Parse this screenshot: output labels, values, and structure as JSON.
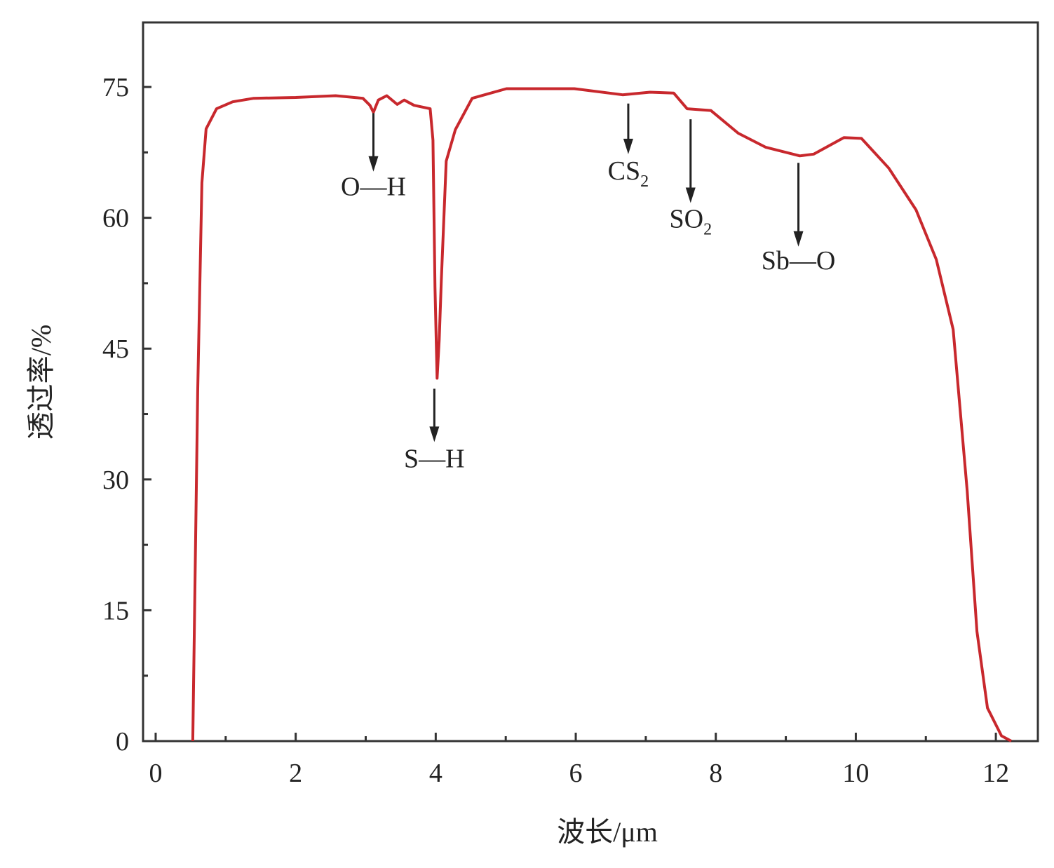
{
  "chart_data": {
    "type": "line",
    "title": "",
    "xlabel": "波长/μm",
    "ylabel": "透过率/%",
    "xlim": [
      -0.18,
      12.6
    ],
    "ylim": [
      0,
      82.4
    ],
    "xticks": [
      0,
      2,
      4,
      6,
      8,
      10,
      12
    ],
    "xminor": [
      1,
      3,
      5,
      7,
      9,
      11
    ],
    "yticks": [
      0,
      15,
      30,
      45,
      60,
      75
    ],
    "yminor": [
      7.5,
      22.5,
      37.5,
      52.5,
      67.5
    ],
    "grid": false,
    "series": [
      {
        "name": "transmittance",
        "color": "#c8282d",
        "x": [
          0.53,
          0.6,
          0.66,
          0.72,
          0.87,
          1.1,
          1.4,
          2.0,
          2.57,
          2.96,
          3.06,
          3.11,
          3.18,
          3.3,
          3.45,
          3.55,
          3.69,
          3.92,
          3.96,
          3.99,
          4.02,
          4.05,
          4.08,
          4.15,
          4.28,
          4.52,
          5.01,
          5.98,
          6.67,
          7.06,
          7.4,
          7.59,
          7.93,
          8.32,
          8.71,
          9.2,
          9.4,
          9.83,
          10.08,
          10.47,
          10.86,
          11.15,
          11.39,
          11.59,
          11.73,
          11.88,
          12.08,
          12.22
        ],
        "y": [
          0,
          40,
          64,
          70.2,
          72.5,
          73.3,
          73.7,
          73.8,
          74,
          73.7,
          72.9,
          72.1,
          73.5,
          74,
          73,
          73.5,
          72.9,
          72.5,
          68.9,
          52,
          41.6,
          46,
          52.8,
          66.5,
          70.1,
          73.7,
          74.8,
          74.8,
          74.1,
          74.4,
          74.3,
          72.5,
          72.3,
          69.7,
          68.1,
          67.1,
          67.3,
          69.2,
          69.1,
          65.7,
          60.9,
          55.2,
          47.2,
          28.7,
          12.6,
          3.8,
          0.6,
          0
        ]
      }
    ],
    "annotations": [
      {
        "label": "O—H",
        "sub": "",
        "x": 3.11,
        "y_from": 72.0,
        "y_to": 65.3,
        "y_label": 62.6
      },
      {
        "label": "S—H",
        "sub": "",
        "x": 3.98,
        "y_from": 40.4,
        "y_to": 34.3,
        "y_label": 31.4
      },
      {
        "label": "CS",
        "sub": "2",
        "x": 6.75,
        "y_from": 73.1,
        "y_to": 67.3,
        "y_label": 64.4
      },
      {
        "label": "SO",
        "sub": "2",
        "x": 7.64,
        "y_from": 71.3,
        "y_to": 61.7,
        "y_label": 58.9
      },
      {
        "label": "Sb—O",
        "sub": "",
        "x": 9.18,
        "y_from": 66.3,
        "y_to": 56.7,
        "y_label": 54.1
      }
    ]
  }
}
